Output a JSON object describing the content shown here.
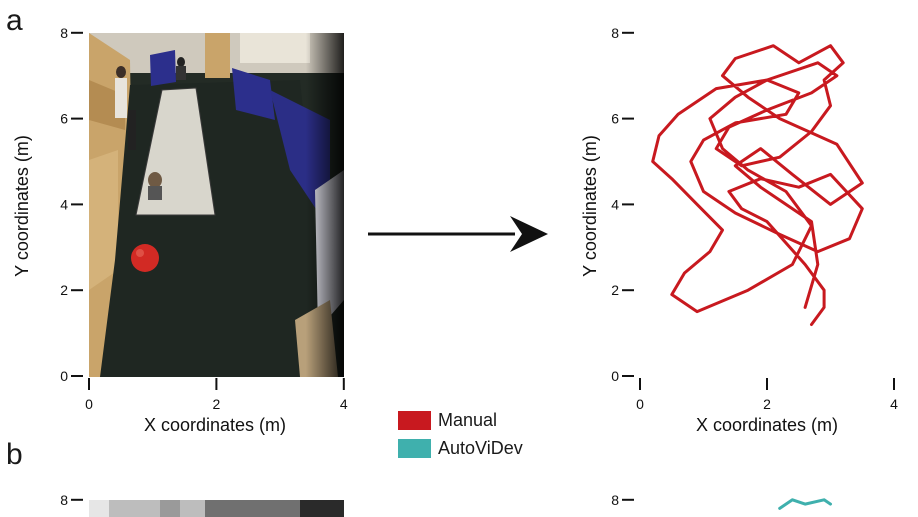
{
  "panels": [
    {
      "letter": "a"
    },
    {
      "letter": "b"
    }
  ],
  "axes": {
    "x_label": "X coordinates (m)",
    "y_label": "Y coordinates (m)",
    "x_ticks": [
      "0",
      "2",
      "4"
    ],
    "y_ticks": [
      "0",
      "2",
      "4",
      "6",
      "8"
    ]
  },
  "legend": [
    {
      "label": "Manual",
      "color": "#c8191f"
    },
    {
      "label": "AutoViDev",
      "color": "#3fb0ad"
    }
  ],
  "photo": {
    "icon": "playroom-overhead-photo",
    "colors": {
      "floor": "#222a24",
      "mat": "#d8d6cc",
      "ball": "#d22a24",
      "wall": "#2c2f8c",
      "panel": "#c9a46a"
    }
  },
  "chart_data": [
    {
      "type": "line",
      "panel": "a",
      "title": "",
      "xlabel": "X coordinates (m)",
      "ylabel": "Y coordinates (m)",
      "xlim": [
        0,
        4
      ],
      "ylim": [
        0,
        8
      ],
      "grid": false,
      "series": [
        {
          "name": "Manual",
          "color": "#c8191f",
          "x": [
            2.7,
            2.9,
            2.9,
            2.6,
            2.3,
            2.0,
            1.6,
            1.4,
            1.9,
            2.5,
            3.0,
            3.5,
            3.3,
            2.8,
            2.2,
            1.5,
            1.0,
            0.8,
            1.0,
            1.5,
            2.3,
            2.5,
            2.0,
            1.2,
            0.6,
            0.3,
            0.2,
            0.5,
            0.9,
            1.3,
            1.1,
            0.7,
            0.5,
            0.9,
            1.7,
            2.4,
            2.7,
            2.3,
            1.7,
            1.3,
            1.1,
            1.5,
            2.0,
            2.8,
            3.1,
            2.7,
            2.0,
            1.4,
            1.2,
            1.6,
            2.2,
            2.7,
            3.0,
            2.9,
            3.2,
            3.0,
            2.5,
            2.1,
            1.5,
            1.3,
            1.7,
            2.2,
            3.1,
            3.5,
            3.0,
            2.4,
            1.9,
            1.5,
            1.9,
            2.7,
            2.8,
            2.6
          ],
          "y": [
            1.2,
            1.6,
            2.0,
            2.6,
            3.1,
            3.6,
            3.9,
            4.3,
            4.6,
            4.4,
            4.7,
            3.9,
            3.2,
            2.9,
            3.3,
            3.8,
            4.3,
            5.0,
            5.5,
            5.9,
            6.1,
            6.6,
            6.9,
            6.7,
            6.1,
            5.6,
            5.0,
            4.6,
            4.0,
            3.4,
            2.9,
            2.4,
            1.9,
            1.5,
            2.0,
            2.6,
            3.5,
            4.3,
            4.8,
            5.3,
            6.0,
            6.5,
            6.9,
            7.3,
            7.0,
            6.6,
            6.2,
            5.8,
            5.3,
            4.9,
            5.1,
            5.7,
            6.3,
            6.9,
            7.3,
            7.7,
            7.3,
            7.7,
            7.4,
            7.0,
            6.5,
            6.0,
            5.4,
            4.5,
            4.0,
            4.7,
            5.3,
            4.9,
            4.4,
            3.6,
            2.6,
            1.6
          ]
        }
      ]
    },
    {
      "type": "line",
      "panel": "b",
      "title": "",
      "xlabel": "",
      "ylabel": "",
      "xlim": [
        0,
        4
      ],
      "ylim": [
        0,
        8
      ],
      "grid": false,
      "series": [
        {
          "name": "AutoViDev",
          "color": "#3fb0ad",
          "x": [
            2.2,
            2.4,
            2.6,
            2.9,
            3.0
          ],
          "y": [
            7.8,
            8.0,
            7.9,
            8.0,
            7.9
          ]
        }
      ]
    }
  ]
}
